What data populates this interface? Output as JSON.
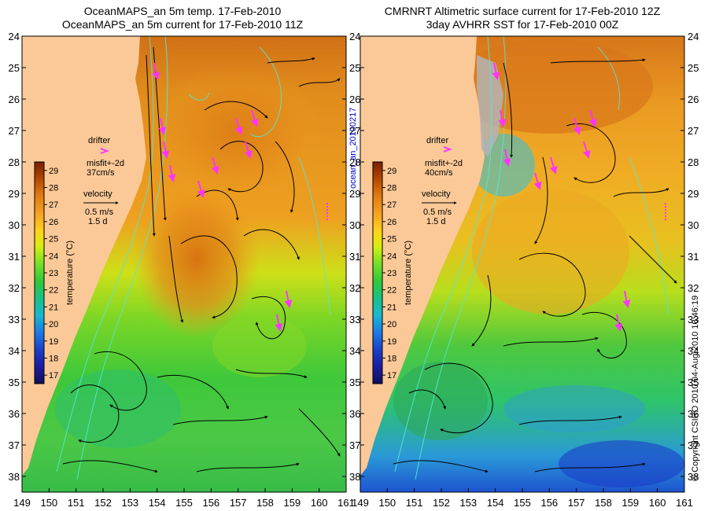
{
  "left_panel": {
    "title_line1": "OceanMAPS_an 5m temp. 17-Feb-2010",
    "title_line2": "OceanMAPS_an 5m current for 17-Feb-2010 11Z",
    "drifter_label": "drifter",
    "misfit_label": "misfit+-2d",
    "misfit_speed": "37cm/s",
    "velocity_label": "velocity",
    "velocity_speed": "0.5 m/s",
    "velocity_time": "1.5 d"
  },
  "right_panel": {
    "title_line1": "CMRNRT Altimetric surface current for 17-Feb-2010 12Z",
    "title_line2": "3day AVHRR SST for 17-Feb-2010 00Z",
    "drifter_label": "drifter",
    "misfit_label": "misfit+-2d",
    "misfit_speed": "40cm/s",
    "velocity_label": "velocity",
    "velocity_speed": "0.5 m/s",
    "velocity_time": "1.5 d"
  },
  "colorbar": {
    "label": "temperature (°C)",
    "ticks": [
      "29",
      "28",
      "27",
      "26",
      "25",
      "24",
      "23",
      "22",
      "21",
      "20",
      "19",
      "18",
      "17"
    ],
    "range": [
      16.5,
      29.5
    ]
  },
  "axes": {
    "y_ticks": [
      "24",
      "25",
      "26",
      "27",
      "28",
      "29",
      "30",
      "31",
      "32",
      "33",
      "34",
      "35",
      "36",
      "37",
      "38"
    ],
    "x_ticks": [
      "149",
      "150",
      "151",
      "152",
      "153",
      "154",
      "155",
      "156",
      "157",
      "158",
      "159",
      "160",
      "161"
    ],
    "lat_range": [
      24,
      38.5
    ],
    "lon_range": [
      149,
      161
    ]
  },
  "side_label_left": "ocean_an_20100217",
  "side_label_right": "© Copyright CSIRO 2010   04-Aug-2010 10:46:19",
  "colors": {
    "land": "#fbc997",
    "drifter": "#ff33ff",
    "contour": "#55e6d8",
    "arrow": "#000000"
  }
}
